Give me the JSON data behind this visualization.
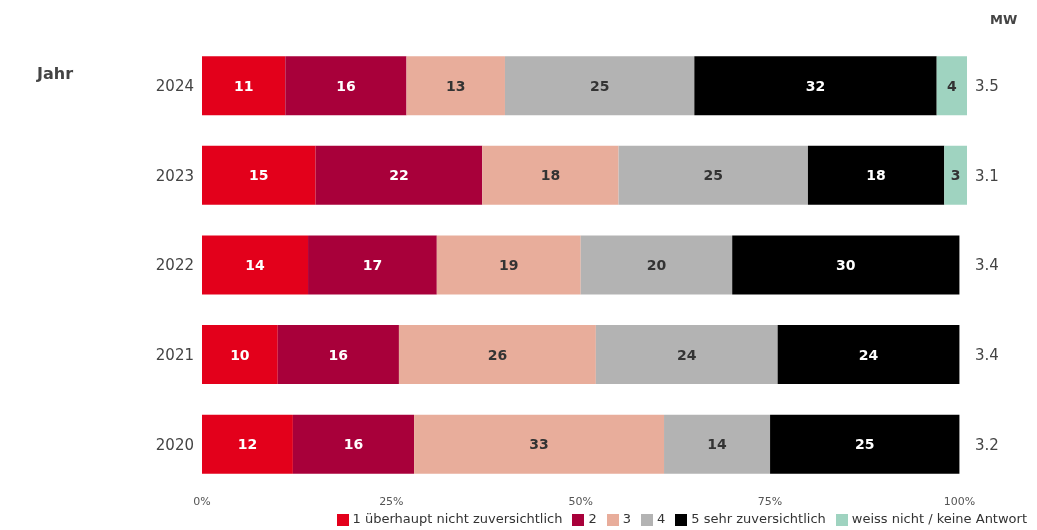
{
  "chart_data": {
    "type": "bar",
    "orientation": "horizontal",
    "stacked": true,
    "categories": [
      "2024",
      "2023",
      "2022",
      "2021",
      "2020"
    ],
    "series": [
      {
        "name": "1 überhaupt nicht zuversichtlich",
        "color": "#e3001b",
        "values": [
          11,
          15,
          14,
          10,
          12
        ]
      },
      {
        "name": "2",
        "color": "#a8003a",
        "values": [
          16,
          22,
          17,
          16,
          16
        ]
      },
      {
        "name": "3",
        "color": "#e8ad9b",
        "values": [
          13,
          18,
          19,
          26,
          33
        ]
      },
      {
        "name": "4",
        "color": "#b3b3b3",
        "values": [
          25,
          25,
          20,
          24,
          14
        ]
      },
      {
        "name": "5 sehr zuversichtlich",
        "color": "#000000",
        "values": [
          32,
          18,
          30,
          24,
          25
        ]
      },
      {
        "name": "weiss nicht / keine Antwort",
        "color": "#9fd3c0",
        "values": [
          4,
          3,
          null,
          null,
          null
        ]
      }
    ],
    "xlim": [
      0,
      101
    ],
    "xticks": [
      {
        "value": 0,
        "label": "0%"
      },
      {
        "value": 25,
        "label": "25%"
      },
      {
        "value": 50,
        "label": "50%"
      },
      {
        "value": 75,
        "label": "75%"
      },
      {
        "value": 100,
        "label": "100%"
      }
    ],
    "data_labels": true,
    "legend": "bottom",
    "annotations": [
      "Jahr",
      "MW",
      "3.5",
      "3.1",
      "3.4",
      "3.4",
      "3.2"
    ]
  }
}
